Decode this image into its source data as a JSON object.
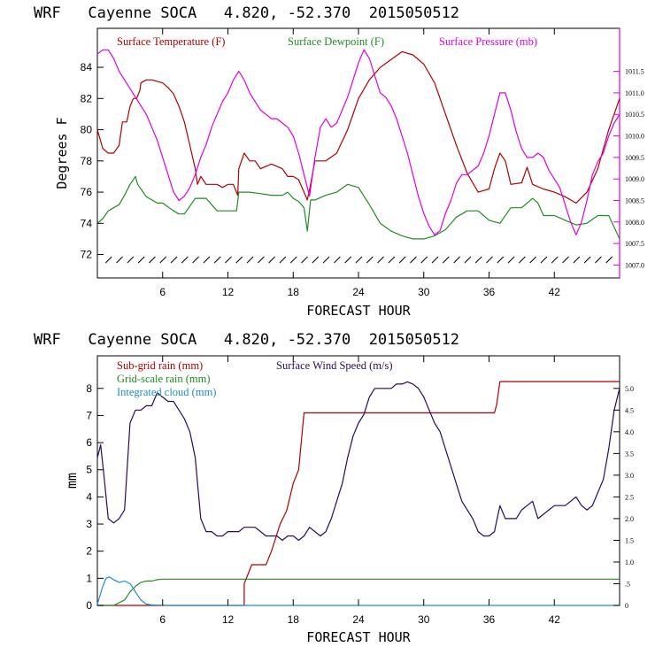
{
  "title": "WRF   Cayenne SOCA   4.820, -52.370  2015050512",
  "colors": {
    "temperature": "#b00000",
    "dewpoint": "#228b22",
    "pressure": "#e000e0",
    "subgrid_rain": "#b00000",
    "gridscale_rain": "#228b22",
    "cloud": "#1a8fd0",
    "wind": "#2a0a5a",
    "axes": "#000000"
  },
  "chart_data": [
    {
      "type": "line",
      "title": "WRF   Cayenne SOCA   4.820, -52.370  2015050512",
      "xlabel": "FORECAST HOUR",
      "ylabel": "Degrees F",
      "xlim": [
        0,
        48
      ],
      "ylim": [
        70.5,
        86.5
      ],
      "xticks": [
        6,
        12,
        18,
        24,
        30,
        36,
        42
      ],
      "yticks": [
        72,
        74,
        76,
        78,
        80,
        82,
        84
      ],
      "y2label": "Surface Pressure (mb)",
      "y2lim": [
        1006.7,
        1012.5
      ],
      "y2ticks": [
        1007.0,
        1007.5,
        1008.0,
        1008.5,
        1009.0,
        1009.5,
        1010.0,
        1010.5,
        1011.0,
        1011.5
      ],
      "y2tick_labels": [
        "1007.0",
        "1007.5",
        "1008.0",
        "1008.5",
        "1009.0",
        "1009.5",
        "1010.0",
        "1010.5",
        "1011.0",
        "1011.5"
      ],
      "legend": [
        "Surface Temperature (F)",
        "Surface Dewpoint (F)",
        "Surface Pressure (mb)"
      ],
      "series": [
        {
          "name": "Surface Temperature (F)",
          "axis": "left",
          "x": [
            0,
            0.5,
            1,
            1.5,
            2,
            2.3,
            2.7,
            3,
            3.3,
            3.6,
            3.9,
            4,
            4.5,
            5,
            5.5,
            6,
            6.5,
            7,
            7.5,
            8,
            8.5,
            9,
            9.2,
            9.5,
            10,
            10.5,
            11,
            11.5,
            12,
            12.5,
            12.9,
            13,
            13.5,
            14,
            14.5,
            15,
            16,
            17,
            17.5,
            18,
            18.5,
            19,
            19.3,
            19.6,
            20,
            21,
            22,
            23,
            24,
            25,
            26,
            27,
            28,
            29,
            30,
            31,
            32,
            33,
            34,
            35,
            36,
            36.5,
            37,
            37.5,
            38,
            39,
            39.5,
            40,
            41,
            42,
            43,
            44,
            45,
            46,
            47,
            48
          ],
          "y": [
            80,
            78.8,
            78.5,
            78.5,
            79,
            80.5,
            80.5,
            81.5,
            82,
            82,
            82.5,
            83,
            83.2,
            83.2,
            83.1,
            83,
            82.7,
            82.3,
            81.5,
            80.5,
            79,
            77.5,
            76.5,
            77,
            76.5,
            76.5,
            76.5,
            76.3,
            76.5,
            76.5,
            75.8,
            77.5,
            78.5,
            78,
            78,
            77.5,
            77.8,
            77.5,
            77,
            77,
            76.8,
            76,
            75.5,
            76.5,
            78,
            78,
            78.5,
            80,
            82,
            83.2,
            84,
            84.5,
            85,
            84.8,
            84.2,
            83,
            81,
            79,
            77.2,
            76,
            76.2,
            77.5,
            78.5,
            78,
            76.5,
            76.6,
            77.6,
            76.5,
            76.2,
            76,
            75.7,
            75.3,
            76,
            77.5,
            80,
            82
          ]
        },
        {
          "name": "Surface Dewpoint (F)",
          "axis": "left",
          "x": [
            0,
            0.5,
            1,
            1.5,
            2,
            2.5,
            3,
            3.3,
            3.5,
            3.7,
            4,
            4.5,
            5,
            5.5,
            6,
            7,
            7.5,
            8,
            9,
            10,
            11,
            12,
            12.8,
            13,
            14,
            15,
            16,
            17,
            17.5,
            18,
            18.5,
            19,
            19.3,
            19.6,
            20,
            21,
            22,
            23,
            24,
            25,
            26,
            27,
            28,
            29,
            30,
            31,
            32,
            33,
            34,
            35,
            36,
            37,
            38,
            39,
            40,
            40.5,
            41,
            42,
            43,
            44,
            45,
            46,
            47,
            48
          ],
          "y": [
            74,
            74.3,
            74.8,
            75,
            75.2,
            75.8,
            76.5,
            76.8,
            77,
            76.5,
            76.2,
            75.7,
            75.5,
            75.3,
            75.3,
            74.8,
            74.6,
            74.6,
            75.6,
            75.6,
            74.8,
            74.8,
            74.8,
            76,
            76,
            75.9,
            75.8,
            75.8,
            76,
            75.6,
            75.4,
            75,
            73.5,
            75.5,
            75.5,
            75.8,
            76,
            76.5,
            76.3,
            75.2,
            74,
            73.5,
            73.2,
            73,
            73,
            73.2,
            73.6,
            74.4,
            74.8,
            74.8,
            74.2,
            74,
            75,
            75,
            75.6,
            75.3,
            74.5,
            74.5,
            74.2,
            73.9,
            74,
            74.5,
            74.5,
            73
          ]
        },
        {
          "name": "Surface Pressure (mb)",
          "axis": "right",
          "x": [
            0,
            0.5,
            1,
            1.5,
            2,
            2.5,
            3,
            3.5,
            4,
            4.5,
            5,
            5.5,
            6,
            6.5,
            7,
            7.5,
            8,
            8.5,
            9,
            9.5,
            10,
            10.5,
            11,
            11.5,
            12,
            12.5,
            13,
            13.5,
            14,
            14.5,
            15,
            15.5,
            16,
            16.5,
            17,
            17.5,
            18,
            18.5,
            19,
            19.5,
            20,
            20.5,
            21,
            21.5,
            22,
            22.5,
            23,
            23.5,
            24,
            24.5,
            25,
            25.5,
            26,
            26.5,
            27,
            27.5,
            28,
            28.5,
            29,
            29.5,
            30,
            30.5,
            31,
            31.5,
            32,
            32.5,
            33,
            33.5,
            34,
            34.5,
            35,
            35.5,
            36,
            36.5,
            37,
            37.5,
            38,
            38.5,
            39,
            39.5,
            40,
            40.5,
            41,
            41.5,
            42,
            42.5,
            43,
            43.5,
            44,
            44.5,
            45,
            45.5,
            46,
            46.5,
            47,
            47.5,
            48
          ],
          "y": [
            1011.9,
            1012.0,
            1012.0,
            1011.8,
            1011.5,
            1011.3,
            1011.1,
            1010.9,
            1010.7,
            1010.5,
            1010.2,
            1009.9,
            1009.5,
            1009.1,
            1008.7,
            1008.5,
            1008.6,
            1008.8,
            1009.1,
            1009.5,
            1009.8,
            1010.2,
            1010.5,
            1010.8,
            1011.0,
            1011.3,
            1011.5,
            1011.3,
            1011.0,
            1010.8,
            1010.6,
            1010.5,
            1010.4,
            1010.4,
            1010.3,
            1010.2,
            1010.0,
            1009.6,
            1009.1,
            1008.6,
            1009.5,
            1010.2,
            1010.4,
            1010.2,
            1010.3,
            1010.6,
            1010.9,
            1011.3,
            1011.7,
            1012.0,
            1011.8,
            1011.4,
            1011.0,
            1010.9,
            1010.7,
            1010.4,
            1010.0,
            1009.6,
            1009.1,
            1008.6,
            1008.2,
            1007.9,
            1007.7,
            1007.8,
            1008.2,
            1008.5,
            1008.9,
            1009.1,
            1009.1,
            1009.2,
            1009.3,
            1009.6,
            1010.0,
            1010.5,
            1011.0,
            1011.0,
            1010.6,
            1010.1,
            1009.7,
            1009.5,
            1009.5,
            1009.6,
            1009.5,
            1009.2,
            1009.0,
            1008.8,
            1008.4,
            1008.0,
            1007.7,
            1008.0,
            1008.5,
            1009.1,
            1009.4,
            1009.6,
            1010.0,
            1010.3,
            1010.5
          ]
        }
      ],
      "wind_barbs_note": "wind barbs drawn along the bottom of the panel"
    },
    {
      "type": "line",
      "title": "WRF   Cayenne SOCA   4.820, -52.370  2015050512",
      "xlabel": "FORECAST HOUR",
      "ylabel": "mm",
      "xlim": [
        0,
        48
      ],
      "ylim": [
        0,
        9.2
      ],
      "xticks": [
        6,
        12,
        18,
        24,
        30,
        36,
        42
      ],
      "yticks": [
        0,
        1,
        2,
        3,
        4,
        5,
        6,
        7,
        8
      ],
      "y2label": "Surface Wind Speed (m/s)",
      "y2lim": [
        0,
        5.75
      ],
      "y2ticks": [
        0,
        0.5,
        1.0,
        1.5,
        2.0,
        2.5,
        3.0,
        3.5,
        4.0,
        4.5,
        5.0
      ],
      "y2tick_labels": [
        "0",
        ".5",
        "1.0",
        "1.5",
        "2.0",
        "2.5",
        "3.0",
        "3.5",
        "4.0",
        "4.5",
        "5.0"
      ],
      "legend": [
        "Sub-grid rain (mm)",
        "Surface Wind Speed (m/s)",
        "Grid-scale rain (mm)",
        "Integrated cloud (mm)"
      ],
      "series": [
        {
          "name": "Sub-grid rain (mm)",
          "axis": "left",
          "x": [
            0,
            13.5,
            13.5,
            14.2,
            14.6,
            15.5,
            16,
            16.8,
            17.4,
            18,
            18.5,
            19,
            36.5,
            36.7,
            37,
            48
          ],
          "y": [
            0,
            0,
            0.8,
            1.5,
            1.5,
            1.5,
            2,
            3,
            3.5,
            4.5,
            5,
            7.1,
            7.1,
            7.4,
            8.25,
            8.25
          ]
        },
        {
          "name": "Grid-scale rain (mm)",
          "axis": "left",
          "x": [
            0,
            1.5,
            2.5,
            3,
            3.5,
            4,
            4.5,
            5,
            5.5,
            6,
            48
          ],
          "y": [
            0,
            0,
            0.2,
            0.5,
            0.7,
            0.85,
            0.9,
            0.9,
            0.95,
            0.97,
            0.97
          ]
        },
        {
          "name": "Integrated cloud (mm)",
          "axis": "left",
          "x": [
            0,
            0.5,
            0.8,
            1.1,
            1.5,
            2,
            2.5,
            3,
            3.2,
            3.5,
            4,
            4.5,
            5,
            5.5,
            6,
            6.5,
            48
          ],
          "y": [
            0.05,
            0.7,
            1.0,
            1.05,
            0.95,
            0.85,
            0.9,
            0.8,
            0.7,
            0.5,
            0.2,
            0.05,
            0.02,
            0.01,
            0.01,
            0,
            0
          ]
        },
        {
          "name": "Surface Wind Speed (m/s)",
          "axis": "right",
          "x": [
            0,
            0.3,
            0.6,
            1,
            1.5,
            2,
            2.5,
            3,
            3.5,
            4,
            4.5,
            5,
            5.5,
            6,
            6.5,
            7,
            7.5,
            8,
            8.5,
            9,
            9.5,
            10,
            10.5,
            11,
            11.5,
            12,
            12.5,
            13,
            13.5,
            14,
            14.5,
            15,
            15.5,
            16,
            16.5,
            17,
            17.5,
            18,
            18.5,
            19,
            19.5,
            20,
            20.5,
            21,
            21.5,
            22,
            22.5,
            23,
            23.5,
            24,
            24.5,
            25,
            25.5,
            26,
            26.5,
            27,
            27.5,
            28,
            28.5,
            29,
            29.5,
            30,
            30.5,
            31,
            31.5,
            32,
            32.5,
            33,
            33.5,
            34,
            34.5,
            35,
            35.5,
            36,
            36.5,
            37,
            37.5,
            38,
            38.5,
            39,
            39.5,
            40,
            40.5,
            41,
            41.5,
            42,
            42.5,
            43,
            43.5,
            44,
            44.5,
            45,
            45.5,
            46,
            46.5,
            47,
            47.5,
            48
          ],
          "y": [
            3.4,
            3.7,
            3.0,
            2.0,
            1.9,
            2.0,
            2.2,
            4.2,
            4.5,
            4.5,
            4.6,
            4.6,
            4.9,
            4.8,
            4.7,
            4.7,
            4.5,
            4.3,
            4.0,
            3.4,
            2.0,
            1.7,
            1.7,
            1.6,
            1.6,
            1.7,
            1.7,
            1.7,
            1.8,
            1.8,
            1.8,
            1.7,
            1.6,
            1.6,
            1.6,
            1.5,
            1.6,
            1.6,
            1.5,
            1.6,
            1.8,
            1.7,
            1.6,
            1.7,
            2.0,
            2.4,
            2.8,
            3.4,
            3.9,
            4.2,
            4.4,
            4.8,
            5.0,
            5.0,
            5.0,
            5.0,
            5.1,
            5.1,
            5.15,
            5.1,
            5.0,
            4.8,
            4.5,
            4.2,
            4.0,
            3.6,
            3.2,
            2.8,
            2.4,
            2.2,
            2.0,
            1.7,
            1.6,
            1.6,
            1.7,
            2.3,
            2.0,
            2.0,
            2.0,
            2.2,
            2.3,
            2.4,
            2.0,
            2.1,
            2.2,
            2.3,
            2.3,
            2.3,
            2.4,
            2.5,
            2.3,
            2.2,
            2.3,
            2.6,
            2.9,
            3.6,
            4.5,
            5.0
          ]
        }
      ]
    }
  ]
}
